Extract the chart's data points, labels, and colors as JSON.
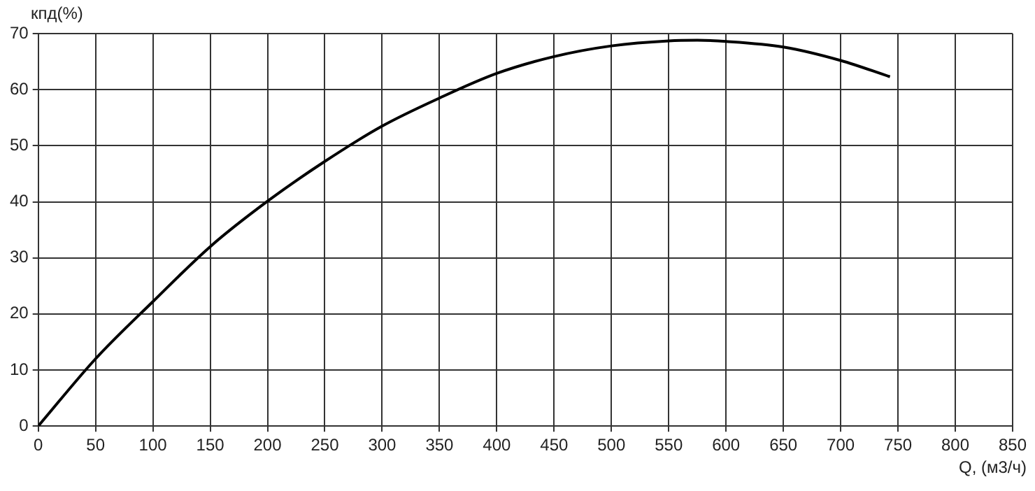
{
  "chart_data": {
    "type": "line",
    "xlabel": "Q, (м3/ч)",
    "ylabel": "кпд(%)",
    "x": [
      0,
      50,
      100,
      150,
      200,
      250,
      300,
      350,
      400,
      450,
      500,
      550,
      575,
      600,
      650,
      700,
      743
    ],
    "series": [
      {
        "color": "#000000",
        "values": [
          0,
          12,
          22.2,
          32,
          40.1,
          47.2,
          53.5,
          58.5,
          62.9,
          65.9,
          67.8,
          68.7,
          68.8,
          68.6,
          67.6,
          65.2,
          62.3
        ]
      }
    ],
    "xlim": [
      0,
      850
    ],
    "xticks": [
      0,
      50,
      100,
      150,
      200,
      250,
      300,
      350,
      400,
      450,
      500,
      550,
      600,
      650,
      700,
      750,
      800,
      850
    ],
    "ylim": [
      0,
      70
    ],
    "yticks": [
      0,
      10,
      20,
      30,
      40,
      50,
      60,
      70
    ],
    "grid": true,
    "legend": false,
    "marker": "none",
    "line_style": "solid"
  }
}
